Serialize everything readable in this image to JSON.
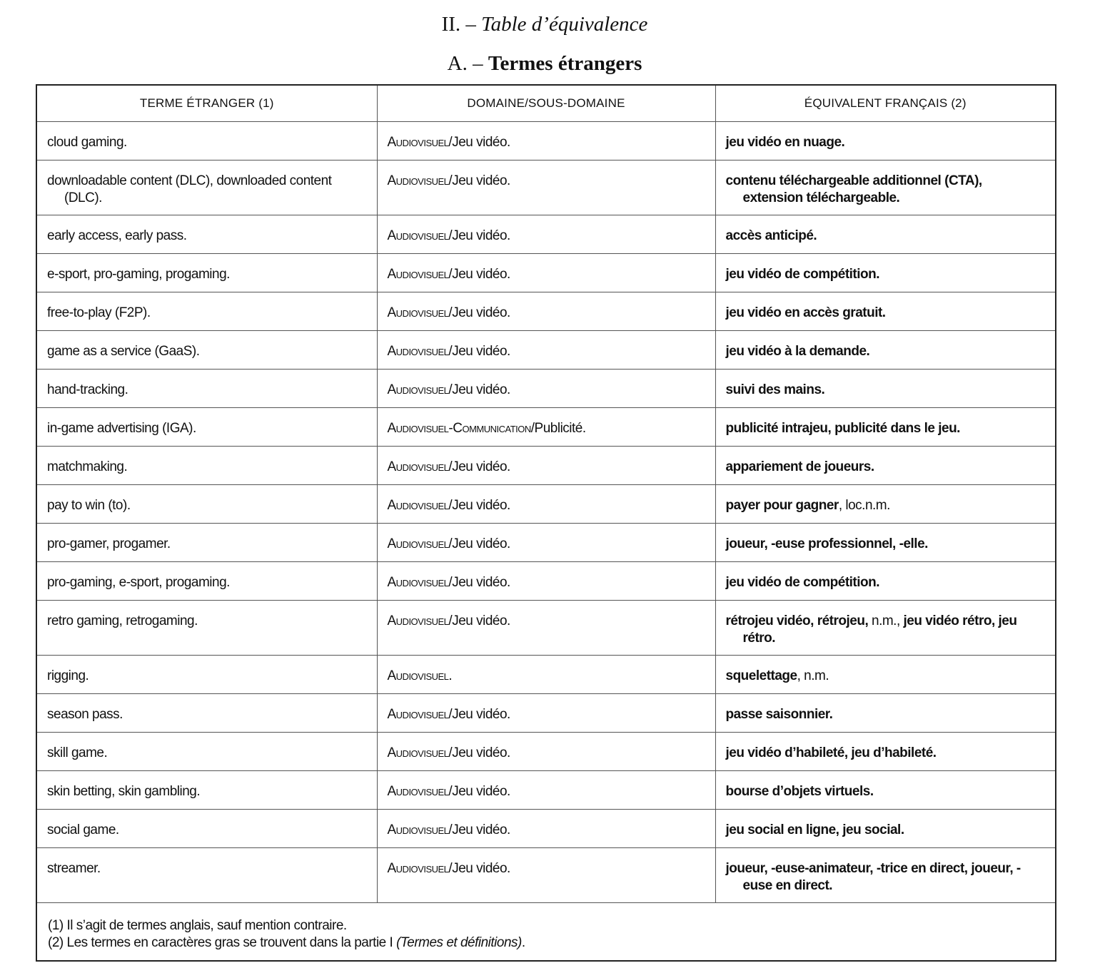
{
  "heading": {
    "prefix": "II. – ",
    "title": "Table d’équivalence"
  },
  "subheading": {
    "prefix": "A. – ",
    "title": "Termes étrangers"
  },
  "columns": [
    "TERME ÉTRANGER (1)",
    "DOMAINE/SOUS-DOMAINE",
    "ÉQUIVALENT FRANÇAIS (2)"
  ],
  "rows": [
    {
      "term": "cloud gaming.",
      "domain_sc": "Audiovisuel",
      "domain_rest": "/Jeu vidéo.",
      "equiv": [
        {
          "t": "jeu vidéo en nuage.",
          "b": true
        }
      ]
    },
    {
      "term": "downloadable content (DLC), downloaded content (DLC).",
      "domain_sc": "Audiovisuel",
      "domain_rest": "/Jeu vidéo.",
      "equiv": [
        {
          "t": "contenu téléchargeable additionnel (CTA), extension téléchargeable.",
          "b": true
        }
      ]
    },
    {
      "term": "early access, early pass.",
      "domain_sc": "Audiovisuel",
      "domain_rest": "/Jeu vidéo.",
      "equiv": [
        {
          "t": "accès anticipé.",
          "b": true
        }
      ]
    },
    {
      "term": "e-sport, pro-gaming, progaming.",
      "domain_sc": "Audiovisuel",
      "domain_rest": "/Jeu vidéo.",
      "equiv": [
        {
          "t": "jeu vidéo de compétition.",
          "b": true
        }
      ]
    },
    {
      "term": "free-to-play (F2P).",
      "domain_sc": "Audiovisuel",
      "domain_rest": "/Jeu vidéo.",
      "equiv": [
        {
          "t": "jeu vidéo en accès gratuit.",
          "b": true
        }
      ]
    },
    {
      "term": "game as a service (GaaS).",
      "domain_sc": "Audiovisuel",
      "domain_rest": "/Jeu vidéo.",
      "equiv": [
        {
          "t": "jeu vidéo à la demande.",
          "b": true
        }
      ]
    },
    {
      "term": "hand-tracking.",
      "domain_sc": "Audiovisuel",
      "domain_rest": "/Jeu vidéo.",
      "equiv": [
        {
          "t": "suivi des mains.",
          "b": true
        }
      ]
    },
    {
      "term": "in-game advertising (IGA).",
      "domain_sc": "Audiovisuel-Communication",
      "domain_rest": "/Publicité.",
      "equiv": [
        {
          "t": "publicité intrajeu, publicité dans le jeu.",
          "b": true
        }
      ]
    },
    {
      "term": "matchmaking.",
      "domain_sc": "Audiovisuel",
      "domain_rest": "/Jeu vidéo.",
      "equiv": [
        {
          "t": "appariement de joueurs.",
          "b": true
        }
      ]
    },
    {
      "term": "pay to win (to).",
      "domain_sc": "Audiovisuel",
      "domain_rest": "/Jeu vidéo.",
      "equiv": [
        {
          "t": "payer pour gagner",
          "b": true
        },
        {
          "t": ", loc.n.m.",
          "b": false
        }
      ]
    },
    {
      "term": "pro-gamer, progamer.",
      "domain_sc": "Audiovisuel",
      "domain_rest": "/Jeu vidéo.",
      "equiv": [
        {
          "t": "joueur, -euse professionnel, -elle.",
          "b": true
        }
      ]
    },
    {
      "term": "pro-gaming, e-sport, progaming.",
      "domain_sc": "Audiovisuel",
      "domain_rest": "/Jeu vidéo.",
      "equiv": [
        {
          "t": "jeu vidéo de compétition.",
          "b": true
        }
      ]
    },
    {
      "term": "retro gaming, retrogaming.",
      "domain_sc": "Audiovisuel",
      "domain_rest": "/Jeu vidéo.",
      "equiv": [
        {
          "t": "rétrojeu vidéo, rétrojeu,",
          "b": true
        },
        {
          "t": " n.m., ",
          "b": false
        },
        {
          "t": "jeu vidéo rétro, jeu rétro.",
          "b": true
        }
      ]
    },
    {
      "term": "rigging.",
      "domain_sc": "Audiovisuel",
      "domain_rest": ".",
      "equiv": [
        {
          "t": "squelettage",
          "b": true
        },
        {
          "t": ", n.m.",
          "b": false
        }
      ]
    },
    {
      "term": "season pass.",
      "domain_sc": "Audiovisuel",
      "domain_rest": "/Jeu vidéo.",
      "equiv": [
        {
          "t": "passe saisonnier.",
          "b": true
        }
      ]
    },
    {
      "term": "skill game.",
      "domain_sc": "Audiovisuel",
      "domain_rest": "/Jeu vidéo.",
      "equiv": [
        {
          "t": "jeu vidéo d’habileté, jeu d’habileté.",
          "b": true
        }
      ]
    },
    {
      "term": "skin betting, skin gambling.",
      "domain_sc": "Audiovisuel",
      "domain_rest": "/Jeu vidéo.",
      "equiv": [
        {
          "t": "bourse d’objets virtuels.",
          "b": true
        }
      ]
    },
    {
      "term": "social game.",
      "domain_sc": "Audiovisuel",
      "domain_rest": "/Jeu vidéo.",
      "equiv": [
        {
          "t": "jeu social en ligne, jeu social.",
          "b": true
        }
      ]
    },
    {
      "term": "streamer.",
      "domain_sc": "Audiovisuel",
      "domain_rest": "/Jeu vidéo.",
      "equiv": [
        {
          "t": "joueur, -euse-animateur, -trice en direct, joueur, -euse en direct.",
          "b": true
        }
      ]
    }
  ],
  "footnotes": {
    "note1": "(1) Il s’agit de termes anglais, sauf mention contraire.",
    "note2_text": "(2) Les termes en caractères gras se trouvent dans la partie I ",
    "note2_italic": "(Termes et définitions)",
    "note2_end": "."
  }
}
